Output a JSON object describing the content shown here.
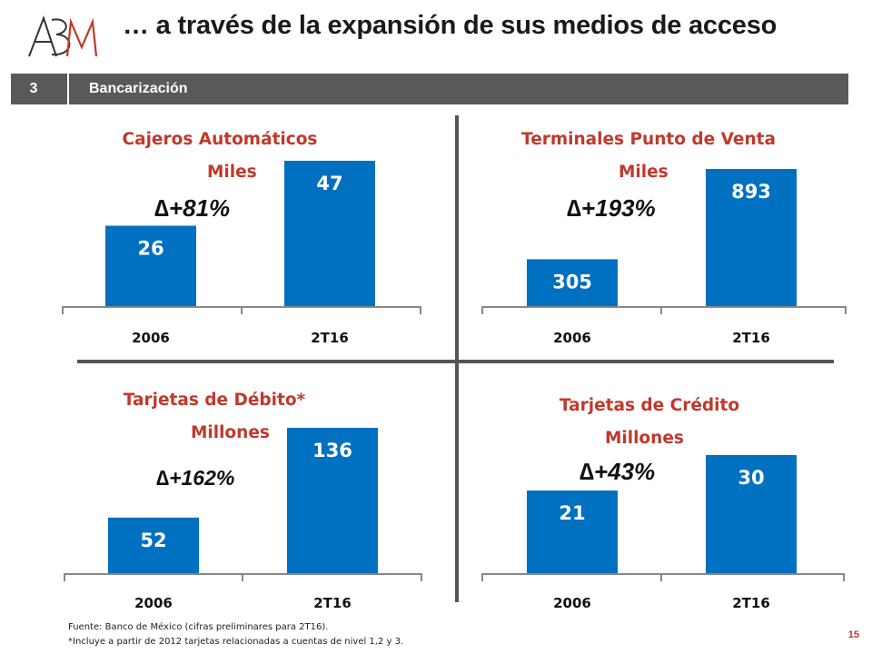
{
  "title": "… a través de la expansión de sus medios de acceso",
  "section": {
    "number": "3",
    "label": "Bancarización"
  },
  "logo_text": "ABM",
  "chart_data": [
    {
      "type": "bar",
      "title": "Cajeros Automáticos",
      "unit": "Miles",
      "categories": [
        "2006",
        "2T16"
      ],
      "values": [
        26,
        47
      ],
      "growth": "+81%",
      "bar_color": "#0070C0",
      "ylim": [
        0,
        47
      ]
    },
    {
      "type": "bar",
      "title": "Terminales Punto de Venta",
      "unit": "Miles",
      "categories": [
        "2006",
        "2T16"
      ],
      "values": [
        305,
        893
      ],
      "growth": "+193%",
      "bar_color": "#0070C0",
      "ylim": [
        0,
        893
      ]
    },
    {
      "type": "bar",
      "title": "Tarjetas de Débito*",
      "unit": "Millones",
      "categories": [
        "2006",
        "2T16"
      ],
      "values": [
        52,
        136
      ],
      "growth": "+162%",
      "bar_color": "#0070C0",
      "ylim": [
        0,
        136
      ]
    },
    {
      "type": "bar",
      "title": "Tarjetas de Crédito",
      "unit": "Millones",
      "categories": [
        "2006",
        "2T16"
      ],
      "values": [
        21,
        30
      ],
      "growth": "+43%",
      "bar_color": "#0070C0",
      "ylim": [
        0,
        30
      ]
    }
  ],
  "footnotes": [
    "Fuente: Banco de México (cifras preliminares para 2T16).",
    "*Incluye a partir de 2012  tarjetas relacionadas a cuentas de nivel 1,2 y 3."
  ],
  "page_number": "15"
}
